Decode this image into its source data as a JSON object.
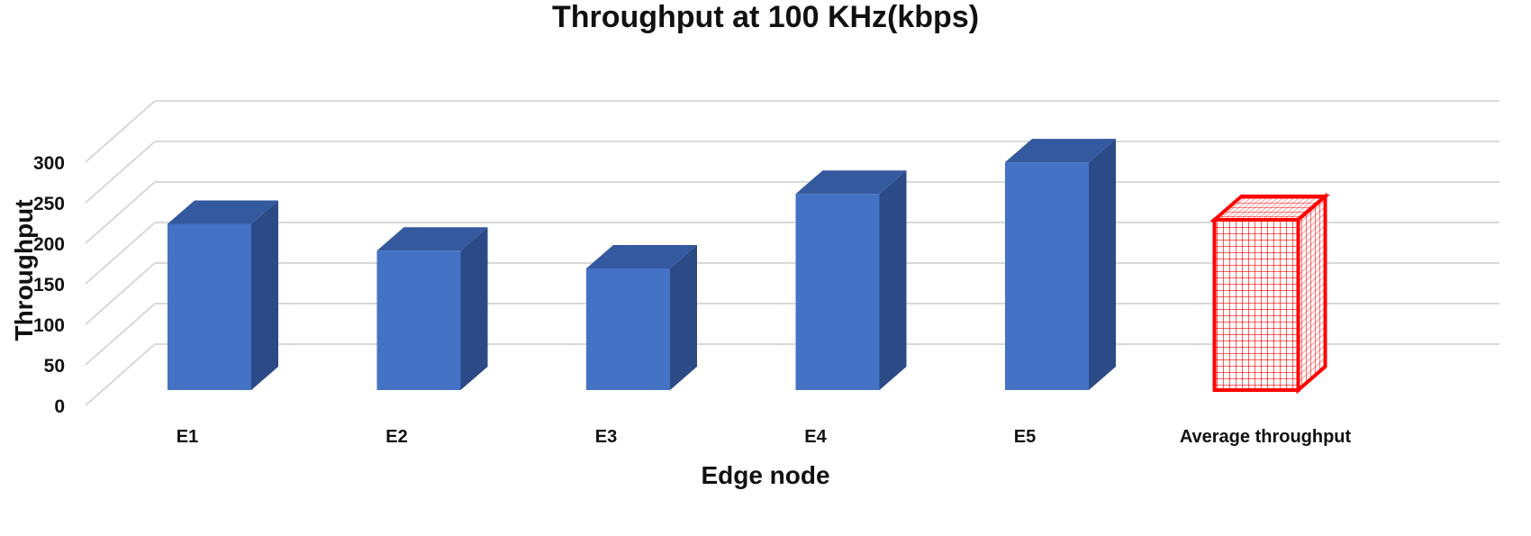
{
  "chart_data": {
    "type": "bar",
    "title": "Throughput at 100 KHz(kbps)",
    "xlabel": "Edge node",
    "ylabel": "Throughput",
    "categories": [
      "E1",
      "E2",
      "E3",
      "E4",
      "E5",
      "Average throughput"
    ],
    "series": [
      {
        "values": [
          205,
          172,
          150,
          242,
          281,
          210
        ]
      }
    ],
    "ylim": [
      0,
      300
    ],
    "yticks": [
      0,
      50,
      100,
      150,
      200,
      250,
      300
    ],
    "grid": true,
    "three_d": true,
    "highlight_index": 5,
    "colors": {
      "bar_front": "#4472C4",
      "bar_side": "#2B4A86",
      "bar_top": "#34599F",
      "highlight": "#FF0000",
      "grid": "#D9D9D9"
    }
  }
}
